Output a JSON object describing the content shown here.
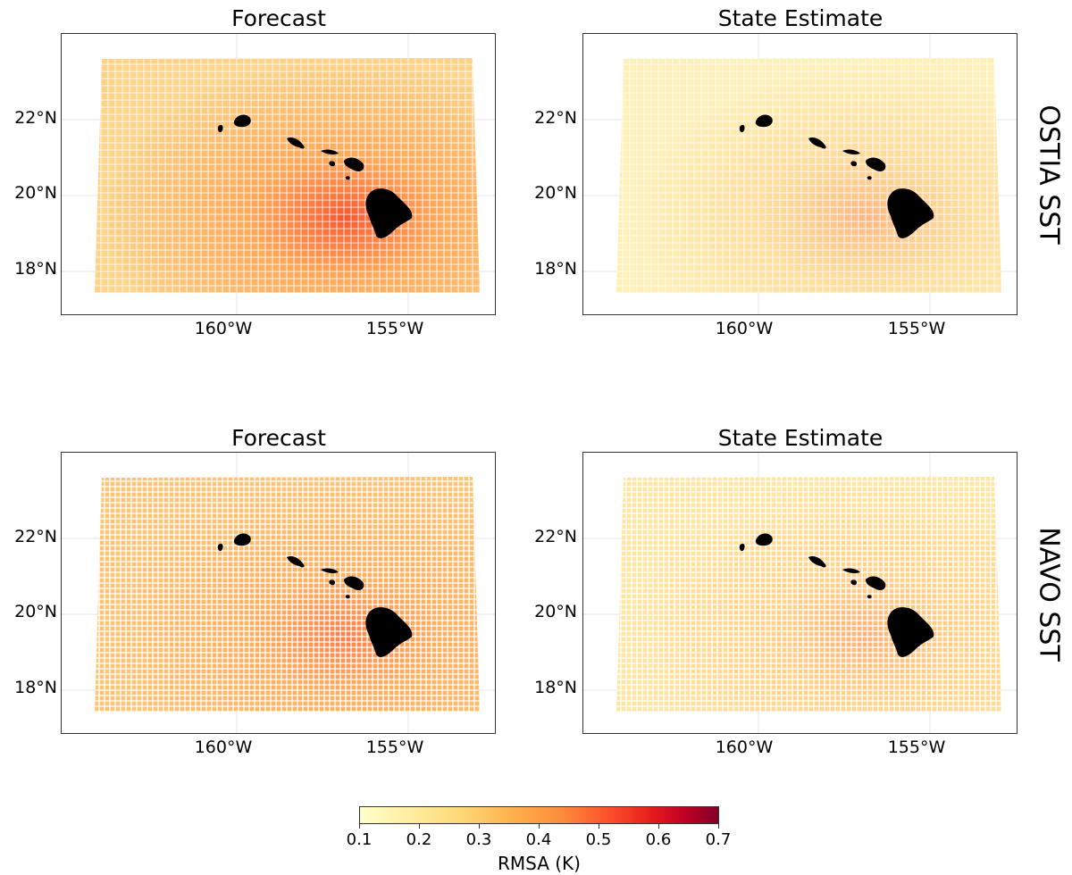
{
  "panels": [
    {
      "title": "Forecast",
      "lat_labels": [
        "22°N",
        "20°N",
        "18°N"
      ],
      "lon_labels": [
        "160°W",
        "155°W"
      ],
      "tint": "#fdd28a",
      "hot": 0.95
    },
    {
      "title": "State Estimate",
      "lat_labels": [
        "22°N",
        "20°N",
        "18°N"
      ],
      "lon_labels": [
        "160°W",
        "155°W"
      ],
      "tint": "#fff0b8",
      "hot": 0.35
    },
    {
      "title": "Forecast",
      "lat_labels": [
        "22°N",
        "20°N",
        "18°N"
      ],
      "lon_labels": [
        "160°W",
        "155°W"
      ],
      "tint": "#fcc67a",
      "hot": 0.6
    },
    {
      "title": "State Estimate",
      "lat_labels": [
        "22°N",
        "20°N",
        "18°N"
      ],
      "lon_labels": [
        "160°W",
        "155°W"
      ],
      "tint": "#ffe6a3",
      "hot": 0.35
    }
  ],
  "row_labels": [
    "OSTIA SST",
    "NAVO SST"
  ],
  "colorbar": {
    "ticks": [
      "0.1",
      "0.2",
      "0.3",
      "0.4",
      "0.5",
      "0.6",
      "0.7"
    ],
    "label": "RMSA (K)",
    "range": [
      0.1,
      0.7
    ],
    "colors": [
      "#ffffcc",
      "#fed976",
      "#feb24c",
      "#fd8d3c",
      "#fc4e2a",
      "#e31a1c",
      "#800026"
    ]
  },
  "land_color": "#000000"
}
